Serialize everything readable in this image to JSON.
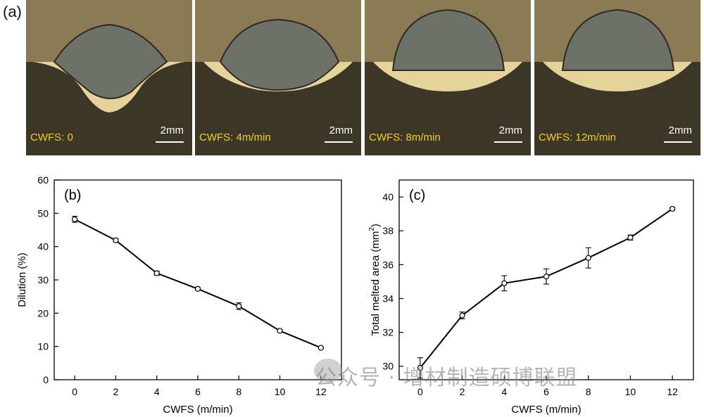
{
  "figure": {
    "panel_a_label": "(a)",
    "micrographs": [
      {
        "caption": "CWFS: 0",
        "scale": "2mm",
        "shape": "peaked"
      },
      {
        "caption": "CWFS: 4m/min",
        "scale": "2mm",
        "shape": "rounded"
      },
      {
        "caption": "CWFS: 8m/min",
        "scale": "2mm",
        "shape": "dome"
      },
      {
        "caption": "CWFS: 12m/min",
        "scale": "2mm",
        "shape": "dome"
      }
    ],
    "watermark": "公众号 · 增材制造硕博联盟"
  },
  "chart_data": [
    {
      "type": "line",
      "panel": "(b)",
      "xlabel": "CWFS (m/min)",
      "ylabel": "Dilution (%)",
      "x": [
        0,
        2,
        4,
        6,
        8,
        10,
        12
      ],
      "xticks": [
        0,
        2,
        4,
        6,
        8,
        10,
        12
      ],
      "xlim": [
        -1,
        13
      ],
      "yticks": [
        0,
        10,
        20,
        30,
        40,
        50,
        60
      ],
      "ylim": [
        0,
        60
      ],
      "series": [
        {
          "values": [
            48.2,
            41.9,
            32.0,
            27.3,
            22.1,
            14.7,
            9.6
          ],
          "errors": [
            0.9,
            0.5,
            0.6,
            0.4,
            1.0,
            0.3,
            0.3
          ],
          "marker": "open-circle",
          "color": "#000000"
        }
      ],
      "grid": false
    },
    {
      "type": "line",
      "panel": "(c)",
      "xlabel": "CWFS (m/min)",
      "ylabel": "Total melted area (mm",
      "ylabel_sup": "2",
      "ylabel_end": ")",
      "x": [
        0,
        2,
        4,
        6,
        8,
        10,
        12
      ],
      "xticks": [
        0,
        2,
        4,
        6,
        8,
        10,
        12
      ],
      "xlim": [
        -1,
        13
      ],
      "yticks": [
        30,
        32,
        34,
        36,
        38,
        40
      ],
      "ylim": [
        29.2,
        41
      ],
      "series": [
        {
          "values": [
            29.9,
            33.0,
            34.9,
            35.3,
            36.4,
            37.6,
            39.3
          ],
          "errors": [
            0.6,
            0.2,
            0.45,
            0.45,
            0.6,
            0.15,
            0.08
          ],
          "marker": "open-circle",
          "color": "#000000"
        }
      ],
      "grid": false
    }
  ]
}
